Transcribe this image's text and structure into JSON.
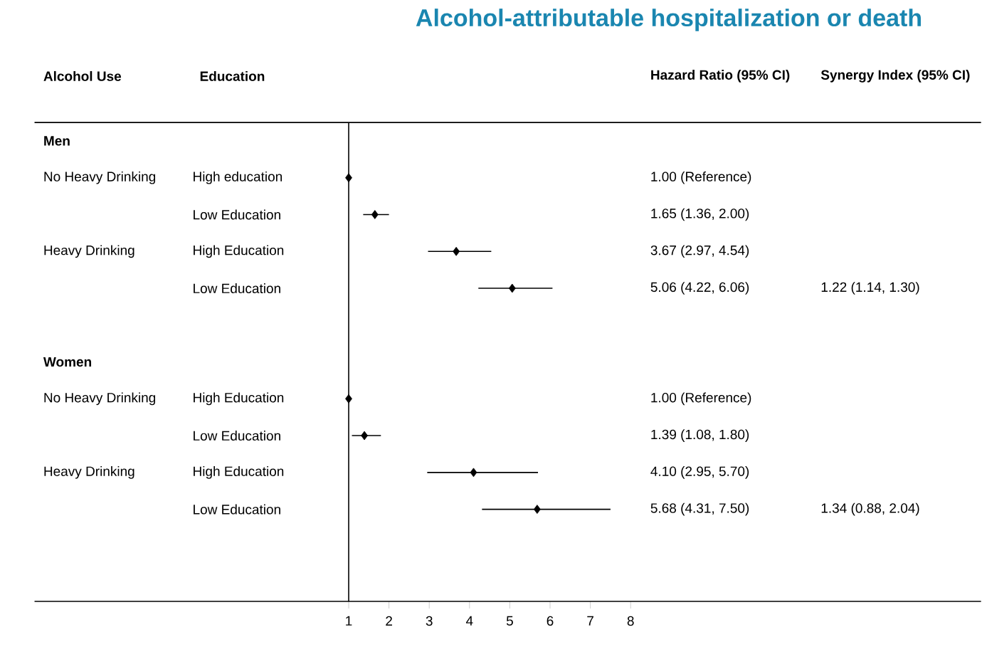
{
  "chart_data": {
    "type": "scatter",
    "orientation": "horizontal",
    "title": "Alcohol-attributable hospitalization or death",
    "categories": [
      null,
      "High education",
      "Low Education",
      "High Education",
      "Low Education",
      null,
      null,
      "High Education",
      "Low Education",
      "High Education",
      "Low Education",
      null,
      null
    ],
    "values": [
      null,
      1.0,
      1.65,
      3.67,
      5.06,
      null,
      null,
      1.0,
      1.39,
      4.1,
      5.68,
      null,
      null
    ],
    "errors": [
      null,
      null,
      [
        1.36,
        2.0
      ],
      [
        2.97,
        4.54
      ],
      [
        4.22,
        6.06
      ],
      null,
      null,
      null,
      [
        1.08,
        1.8
      ],
      [
        2.95,
        5.7
      ],
      [
        4.31,
        7.5
      ],
      null,
      null
    ],
    "color": "#000000",
    "marker": "diamond",
    "xlim": [
      -6.8,
      16.7
    ],
    "xticks": [
      1,
      2,
      3,
      4,
      5,
      6,
      7,
      8
    ],
    "ref_lines": [
      {
        "axis": "x",
        "value": 1,
        "color": "#000000"
      }
    ],
    "annotations": [
      "Alcohol Use",
      "Education",
      "Hazard Ratio (95% CI)",
      "Synergy Index (95% CI)",
      "Men",
      "No Heavy Drinking",
      "1.00 (Reference)",
      "1.65 (1.36, 2.00)",
      "Heavy Drinking",
      "3.67 (2.97, 4.54)",
      "5.06 (4.22, 6.06)",
      "1.22 (1.14, 1.30)",
      "Women",
      "No Heavy Drinking",
      "1.00 (Reference)",
      "1.39 (1.08, 1.80)",
      "Heavy Drinking",
      "4.10 (2.95, 5.70)",
      "5.68 (4.31, 7.50)",
      "1.34 (0.88, 2.04)"
    ]
  }
}
